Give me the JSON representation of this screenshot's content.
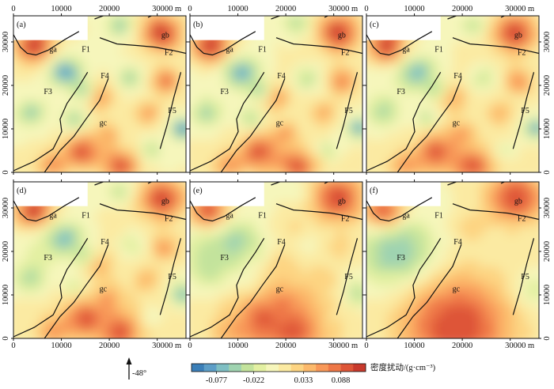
{
  "figure": {
    "x_ticks": [
      "0",
      "10000",
      "20000",
      "30000 m"
    ],
    "y_ticks": [
      "0",
      "10000",
      "20000",
      "30000"
    ],
    "panels": [
      {
        "id": "a",
        "label": "(a)",
        "smooth": 0.0
      },
      {
        "id": "b",
        "label": "(b)",
        "smooth": 0.1
      },
      {
        "id": "c",
        "label": "(c)",
        "smooth": 0.2
      },
      {
        "id": "d",
        "label": "(d)",
        "smooth": 0.3
      },
      {
        "id": "e",
        "label": "(e)",
        "smooth": 0.7
      },
      {
        "id": "f",
        "label": "(f)",
        "smooth": 1.0
      }
    ],
    "features": {
      "ga": "ga",
      "gb": "gb",
      "gc": "gc",
      "F1": "F1",
      "F2": "F2",
      "F3": "F3",
      "F4": "F4",
      "F5": "F5"
    },
    "north_arrow_label": "-48°",
    "colorbar": {
      "title": "密度扰动/(g·cm⁻³)",
      "tick_labels": [
        "-0.077",
        "-0.022",
        "0.033",
        "0.088"
      ],
      "colors": [
        "#3b7fb8",
        "#5d9ec7",
        "#7fbfc3",
        "#9fd3b0",
        "#c3e39c",
        "#e3f0a2",
        "#f6f6bb",
        "#fbeaa2",
        "#fdd482",
        "#fcb96b",
        "#f89858",
        "#ee7747",
        "#de5537",
        "#c8392c"
      ]
    }
  }
}
